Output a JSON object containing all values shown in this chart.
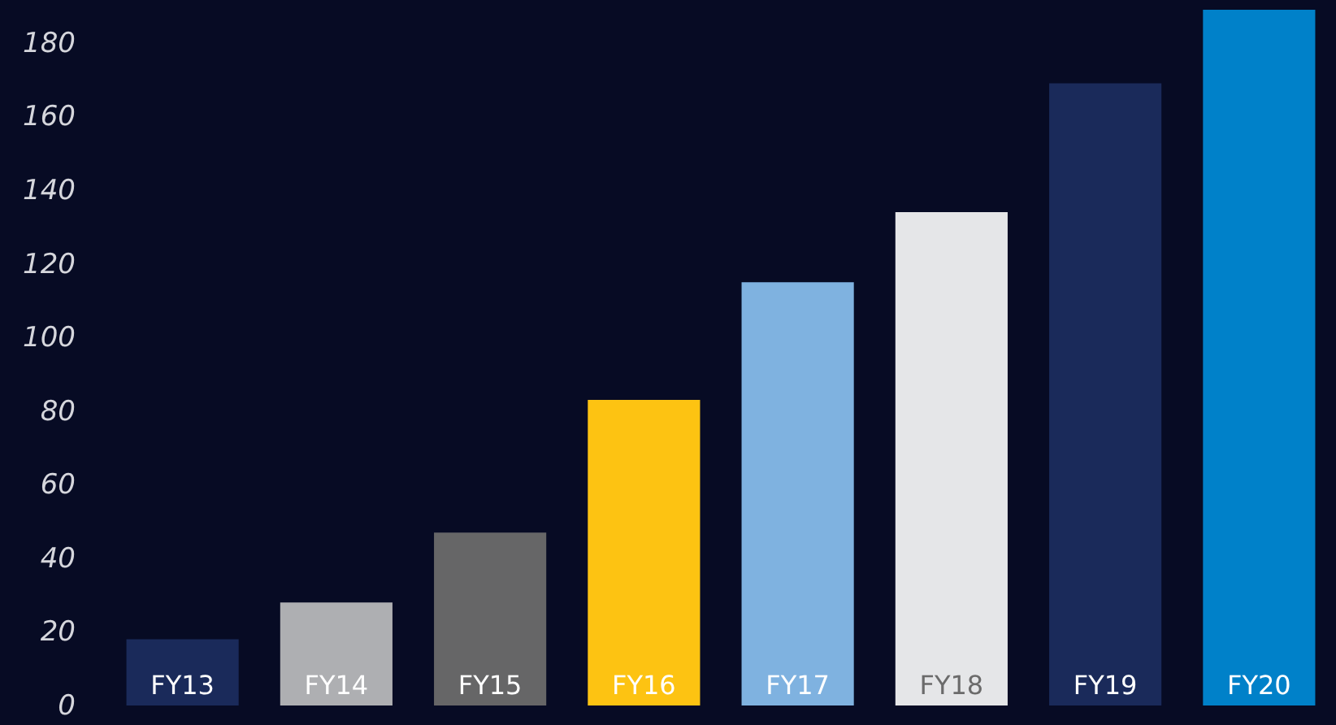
{
  "chart_data": {
    "type": "bar",
    "categories": [
      "FY13",
      "FY14",
      "FY15",
      "FY16",
      "FY17",
      "FY18",
      "FY19",
      "FY20"
    ],
    "values": [
      18,
      28,
      47,
      83,
      115,
      134,
      169,
      189
    ],
    "colors": [
      "#1a2a5a",
      "#aeafb2",
      "#666667",
      "#fdc312",
      "#7fb2e0",
      "#e5e6e8",
      "#1a2a5a",
      "#0081c9"
    ],
    "ylim": [
      0,
      189
    ],
    "yticks": [
      0,
      20,
      40,
      60,
      80,
      100,
      120,
      140,
      160,
      180
    ],
    "grid": false
  }
}
